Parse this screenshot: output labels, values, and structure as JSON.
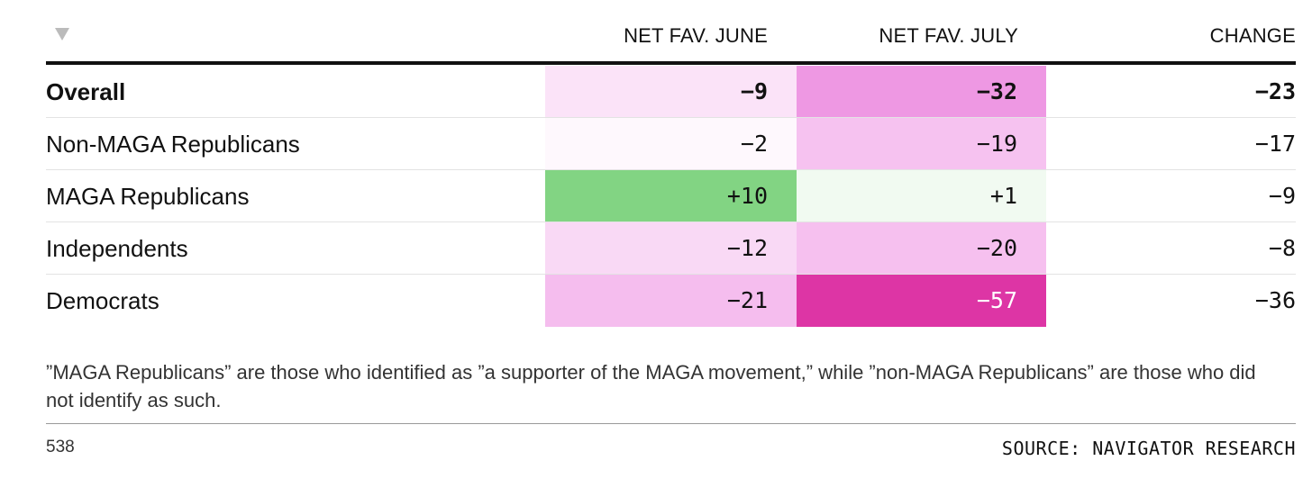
{
  "chart_data": {
    "type": "table",
    "columns": [
      "NET FAV. JUNE",
      "NET FAV. JULY",
      "CHANGE"
    ],
    "rows": [
      {
        "label": "Overall",
        "june": "−9",
        "july": "−32",
        "change": "−23",
        "bold": true,
        "june_value": -9,
        "july_value": -32,
        "change_value": -23,
        "june_color": "#fbe3f8",
        "july_color": "#ee98e3"
      },
      {
        "label": "Non-MAGA Republicans",
        "june": "−2",
        "july": "−19",
        "change": "−17",
        "bold": false,
        "june_value": -2,
        "july_value": -19,
        "change_value": -17,
        "june_color": "#fef8fd",
        "july_color": "#f6c2f0"
      },
      {
        "label": "MAGA Republicans",
        "june": "+10",
        "july": "+1",
        "change": "−9",
        "bold": false,
        "june_value": 10,
        "july_value": 1,
        "change_value": -9,
        "june_color": "#82d483",
        "july_color": "#f1faf1"
      },
      {
        "label": "Independents",
        "june": "−12",
        "july": "−20",
        "change": "−8",
        "bold": false,
        "june_value": -12,
        "july_value": -20,
        "change_value": -8,
        "june_color": "#f9d9f5",
        "july_color": "#f6c0ef"
      },
      {
        "label": "Democrats",
        "june": "−21",
        "july": "−57",
        "change": "−36",
        "bold": false,
        "june_value": -21,
        "july_value": -57,
        "change_value": -36,
        "june_color": "#f5bdee",
        "july_color": "#dd35a5",
        "july_text_color": "#ffffff"
      }
    ]
  },
  "note": "”MAGA Republicans” are those who identified as ”a supporter of the MAGA movement,” while ”non-MAGA Republicans” are those who did not identify as such.",
  "footer": {
    "brand": "538",
    "source": "SOURCE: NAVIGATOR RESEARCH"
  },
  "icons": {
    "sort": "sort-down-triangle-icon"
  }
}
